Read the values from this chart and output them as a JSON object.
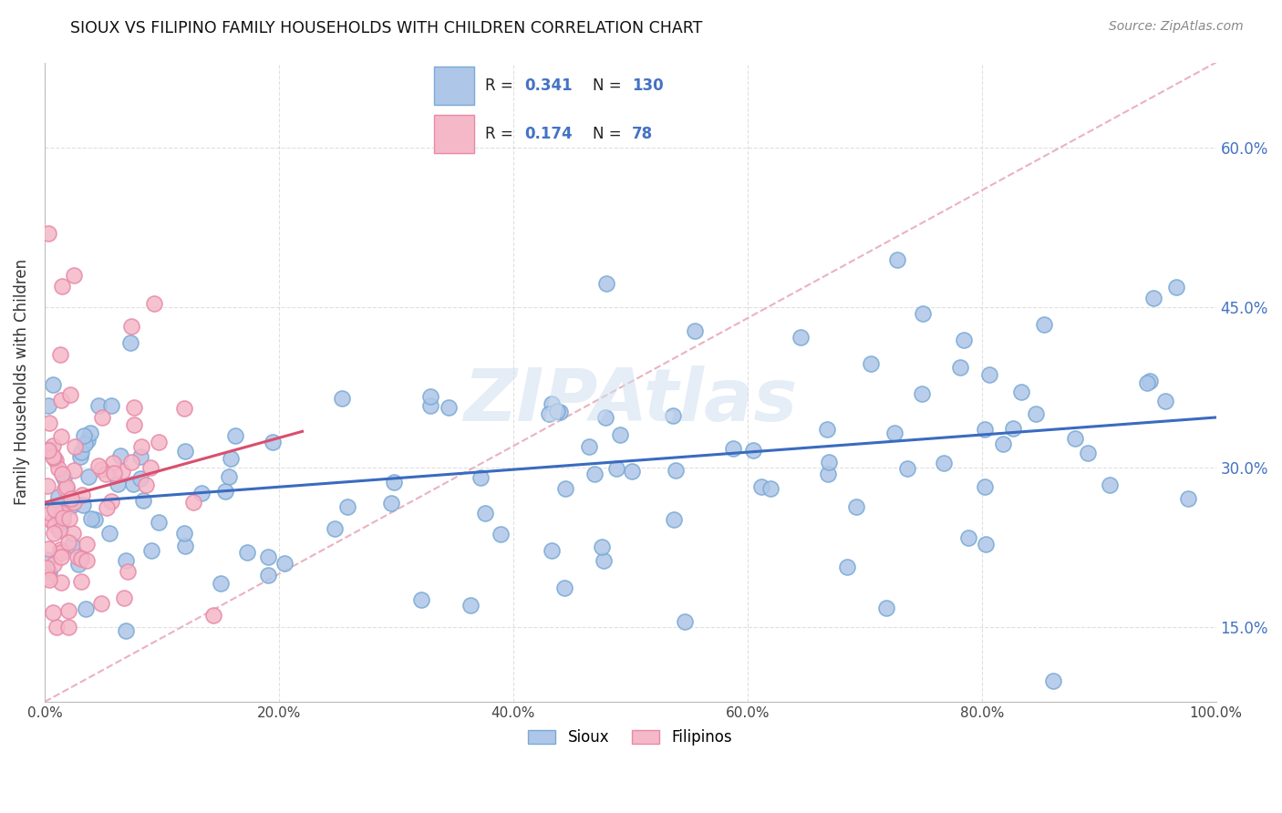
{
  "title": "SIOUX VS FILIPINO FAMILY HOUSEHOLDS WITH CHILDREN CORRELATION CHART",
  "source": "Source: ZipAtlas.com",
  "ylabel": "Family Households with Children",
  "sioux_R": 0.341,
  "sioux_N": 130,
  "filipino_R": 0.174,
  "filipino_N": 78,
  "sioux_color": "#aec6e8",
  "sioux_edge_color": "#7aaad4",
  "filipino_color": "#f5b8c8",
  "filipino_edge_color": "#e88aa8",
  "sioux_line_color": "#3a6bbf",
  "filipino_line_color": "#d94f6e",
  "diagonal_color": "#e8aab8",
  "diagonal_style": "--",
  "background_color": "#ffffff",
  "grid_color": "#cccccc",
  "xlim_min": 0,
  "xlim_max": 100,
  "ylim_min": 8,
  "ylim_max": 68,
  "yticks": [
    15,
    30,
    45,
    60
  ],
  "xtick_labels": [
    "0.0%",
    "20.0%",
    "40.0%",
    "60.0%",
    "80.0%",
    "100.0%"
  ],
  "xtick_vals": [
    0,
    20,
    40,
    60,
    80,
    100
  ],
  "watermark": "ZIPAtlas",
  "legend_sioux_label": "Sioux",
  "legend_filipino_label": "Filipinos",
  "legend_r1": "R = 0.341",
  "legend_n1": "N = 130",
  "legend_r2": "R = 0.174",
  "legend_n2": "N =  78"
}
